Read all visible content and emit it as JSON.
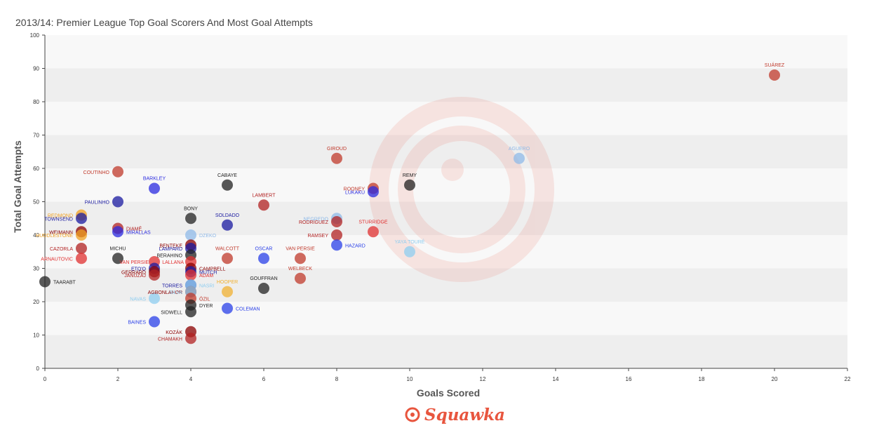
{
  "header": {
    "title": "2013/14: Premier League Top Goal Scorers And Most Goal Attempts"
  },
  "brand": {
    "name": "Squawka"
  },
  "colors": {
    "band": "#eeeeee",
    "axis": "#444444",
    "watermark": "#e8553e"
  },
  "chart_data": {
    "type": "scatter",
    "title": "2013/14: Premier League Top Goal Scorers And Most Goal Attempts",
    "xlabel": "Goals Scored",
    "ylabel": "Total Goal Attempts",
    "xlim": [
      0,
      22
    ],
    "ylim": [
      0,
      100
    ],
    "xticks": [
      0,
      2,
      4,
      6,
      8,
      10,
      12,
      14,
      16,
      18,
      20,
      22
    ],
    "yticks": [
      0,
      10,
      20,
      30,
      40,
      50,
      60,
      70,
      80,
      90,
      100
    ],
    "grid": "alternating horizontal bands",
    "legend": "none",
    "points": [
      {
        "label": "SUÁREZ",
        "x": 20,
        "y": 88,
        "color": "#c0392b"
      },
      {
        "label": "AGUERO",
        "x": 13,
        "y": 63,
        "color": "#8fb9e8"
      },
      {
        "label": "GIROUD",
        "x": 8,
        "y": 63,
        "color": "#c0392b"
      },
      {
        "label": "COUTINHO",
        "x": 2,
        "y": 59,
        "color": "#c0392b"
      },
      {
        "label": "BARKLEY",
        "x": 3,
        "y": 54,
        "color": "#2a2ae0"
      },
      {
        "label": "CABAYE",
        "x": 5,
        "y": 55,
        "color": "#222222"
      },
      {
        "label": "REMY",
        "x": 10,
        "y": 55,
        "color": "#222222"
      },
      {
        "label": "ROONEY",
        "x": 9,
        "y": 54,
        "color": "#c0392b"
      },
      {
        "label": "LUKAKU",
        "x": 9,
        "y": 53,
        "color": "#2a2ae0"
      },
      {
        "label": "PAULINHO",
        "x": 2,
        "y": 50,
        "color": "#1a1aa0"
      },
      {
        "label": "LAMBERT",
        "x": 6,
        "y": 49,
        "color": "#b22222"
      },
      {
        "label": "BONY",
        "x": 4,
        "y": 45,
        "color": "#222222"
      },
      {
        "label": "REDMOND",
        "x": 1,
        "y": 46,
        "color": "#f0a020"
      },
      {
        "label": "TOWNSEND",
        "x": 1,
        "y": 45,
        "color": "#1a1aa0"
      },
      {
        "label": "SOLDADO",
        "x": 5,
        "y": 43,
        "color": "#1a1aa0"
      },
      {
        "label": "NEGREDO",
        "x": 8,
        "y": 45,
        "color": "#8fb9e8"
      },
      {
        "label": "RODRIGUEZ",
        "x": 8,
        "y": 44,
        "color": "#b22222"
      },
      {
        "label": "STURRIDGE",
        "x": 9,
        "y": 41,
        "color": "#e03030"
      },
      {
        "label": "WEIMANN",
        "x": 1,
        "y": 41,
        "color": "#8b0000"
      },
      {
        "label": "DIAMÉ",
        "x": 2,
        "y": 42,
        "color": "#b22222"
      },
      {
        "label": "MIRALLAS",
        "x": 2,
        "y": 41,
        "color": "#2a2ae0"
      },
      {
        "label": "HUDDLESTONE",
        "x": 1,
        "y": 40,
        "color": "#f0a020"
      },
      {
        "label": "DZEKO",
        "x": 4,
        "y": 40,
        "color": "#8fb9e8"
      },
      {
        "label": "RAMSEY",
        "x": 8,
        "y": 40,
        "color": "#b22222"
      },
      {
        "label": "HAZARD",
        "x": 8,
        "y": 37,
        "color": "#2a40e8"
      },
      {
        "label": "BENTEKE",
        "x": 4,
        "y": 37,
        "color": "#8b0000"
      },
      {
        "label": "LAMPARD",
        "x": 4,
        "y": 36,
        "color": "#1a1aa0"
      },
      {
        "label": "CAZORLA",
        "x": 1,
        "y": 36,
        "color": "#b22222"
      },
      {
        "label": "YAYA TOURÉ",
        "x": 10,
        "y": 35,
        "color": "#8fcdf0"
      },
      {
        "label": "BERAHINO",
        "x": 4,
        "y": 34,
        "color": "#222222"
      },
      {
        "label": "MICHU",
        "x": 2,
        "y": 33,
        "color": "#222222"
      },
      {
        "label": "WALCOTT",
        "x": 5,
        "y": 33,
        "color": "#c0392b"
      },
      {
        "label": "OSCAR",
        "x": 6,
        "y": 33,
        "color": "#2a40e8"
      },
      {
        "label": "VAN PERSIE",
        "x": 7,
        "y": 33,
        "color": "#c0392b"
      },
      {
        "label": "ARNAUTOVIC",
        "x": 1,
        "y": 33,
        "color": "#e03030"
      },
      {
        "label": "VAN PERSIE",
        "x": 3,
        "y": 32,
        "color": "#e03030"
      },
      {
        "label": "LALLANA",
        "x": 4,
        "y": 32,
        "color": "#e03030"
      },
      {
        "label": "CAMPBELL",
        "x": 4,
        "y": 30,
        "color": "#8b0000"
      },
      {
        "label": "ETO'O",
        "x": 3,
        "y": 30,
        "color": "#1a1aa0"
      },
      {
        "label": "MUTCH",
        "x": 4,
        "y": 29,
        "color": "#1a1aa0"
      },
      {
        "label": "GERRARD",
        "x": 3,
        "y": 29,
        "color": "#8b0000"
      },
      {
        "label": "ADAM",
        "x": 4,
        "y": 28,
        "color": "#e03030"
      },
      {
        "label": "JANUZAJ",
        "x": 3,
        "y": 28,
        "color": "#b22222"
      },
      {
        "label": "WELBECK",
        "x": 7,
        "y": 27,
        "color": "#c0392b"
      },
      {
        "label": "TAARABT",
        "x": 0,
        "y": 26,
        "color": "#222222"
      },
      {
        "label": "TORRES",
        "x": 4,
        "y": 25,
        "color": "#1a1aa0"
      },
      {
        "label": "NASRI",
        "x": 4,
        "y": 25,
        "color": "#8fcdf0"
      },
      {
        "label": "GOUFFRAN",
        "x": 6,
        "y": 24,
        "color": "#222222"
      },
      {
        "label": "AGBONLAHOR",
        "x": 4,
        "y": 23,
        "color": "#8b0000"
      },
      {
        "label": "HOOPER",
        "x": 5,
        "y": 23,
        "color": "#f0b030"
      },
      {
        "label": "SILVA",
        "x": 4,
        "y": 23,
        "color": "#8fcdf0"
      },
      {
        "label": "NAVAS",
        "x": 3,
        "y": 21,
        "color": "#8fcdf0"
      },
      {
        "label": "ÖZIL",
        "x": 4,
        "y": 21,
        "color": "#c0392b"
      },
      {
        "label": "DYER",
        "x": 4,
        "y": 19,
        "color": "#222222"
      },
      {
        "label": "COLEMAN",
        "x": 5,
        "y": 18,
        "color": "#2a40e8"
      },
      {
        "label": "SIDWELL",
        "x": 4,
        "y": 17,
        "color": "#222222"
      },
      {
        "label": "BAINES",
        "x": 3,
        "y": 14,
        "color": "#2a40e8"
      },
      {
        "label": "KOZÁK",
        "x": 4,
        "y": 11,
        "color": "#8b0000"
      },
      {
        "label": "CHAMAKH",
        "x": 4,
        "y": 9,
        "color": "#b22222"
      }
    ]
  }
}
